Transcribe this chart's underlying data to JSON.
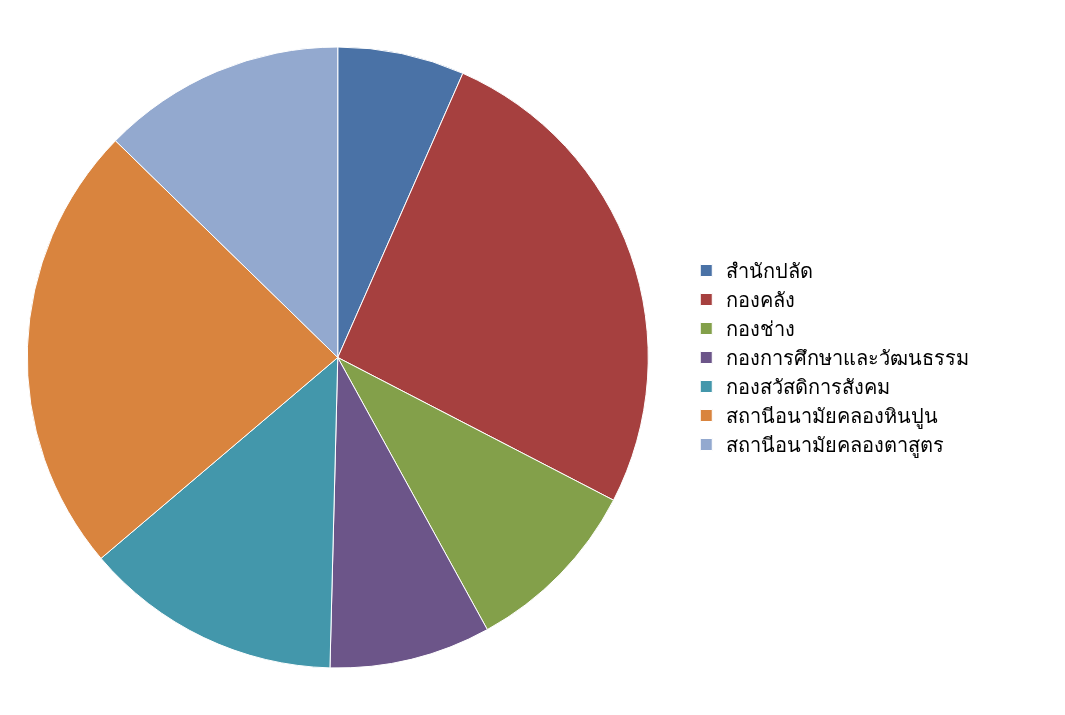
{
  "chart_data": {
    "type": "pie",
    "categories": [
      "สำนักปลัด",
      "กองคลัง",
      "กองช่าง",
      "กองการศึกษาและวัฒนธรรม",
      "กองสวัสดิการสังคม",
      "สถานีอนามัยคลองหินปูน",
      "สถานีอนามัยคลองตาสูตร"
    ],
    "values": [
      6.6,
      26,
      9.4,
      8.4,
      13.4,
      23.5,
      12.7
    ],
    "colors": [
      "#4a72a6",
      "#a6403f",
      "#83a04a",
      "#6c5589",
      "#4397ab",
      "#d9843e",
      "#93a9cf"
    ],
    "legend": "right"
  }
}
